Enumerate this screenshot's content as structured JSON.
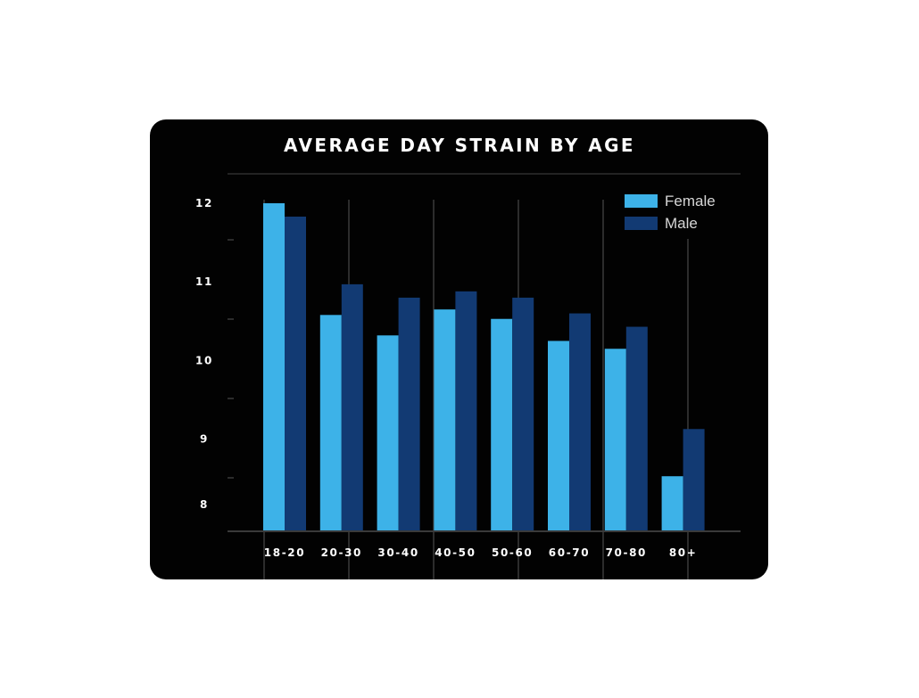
{
  "chart_data": {
    "type": "bar",
    "title": "AVERAGE DAY STRAIN BY AGE",
    "xlabel": "",
    "ylabel": "",
    "categories": [
      "18-20",
      "20-30",
      "30-40",
      "40-50",
      "50-60",
      "60-70",
      "70-80",
      "80+"
    ],
    "series": [
      {
        "name": "Female",
        "color": "#3db2e8",
        "values": [
          12.0,
          10.58,
          10.32,
          10.65,
          10.53,
          10.25,
          10.15,
          8.53
        ]
      },
      {
        "name": "Male",
        "color": "#123a73",
        "values": [
          11.83,
          10.97,
          10.8,
          10.88,
          10.8,
          10.6,
          10.43,
          9.13
        ]
      }
    ],
    "ylim": [
      7.83,
      12.0
    ],
    "yticks": [
      "12",
      "11",
      "10",
      "9",
      "8"
    ],
    "grid": "vertical lines",
    "legend": "top-right"
  }
}
